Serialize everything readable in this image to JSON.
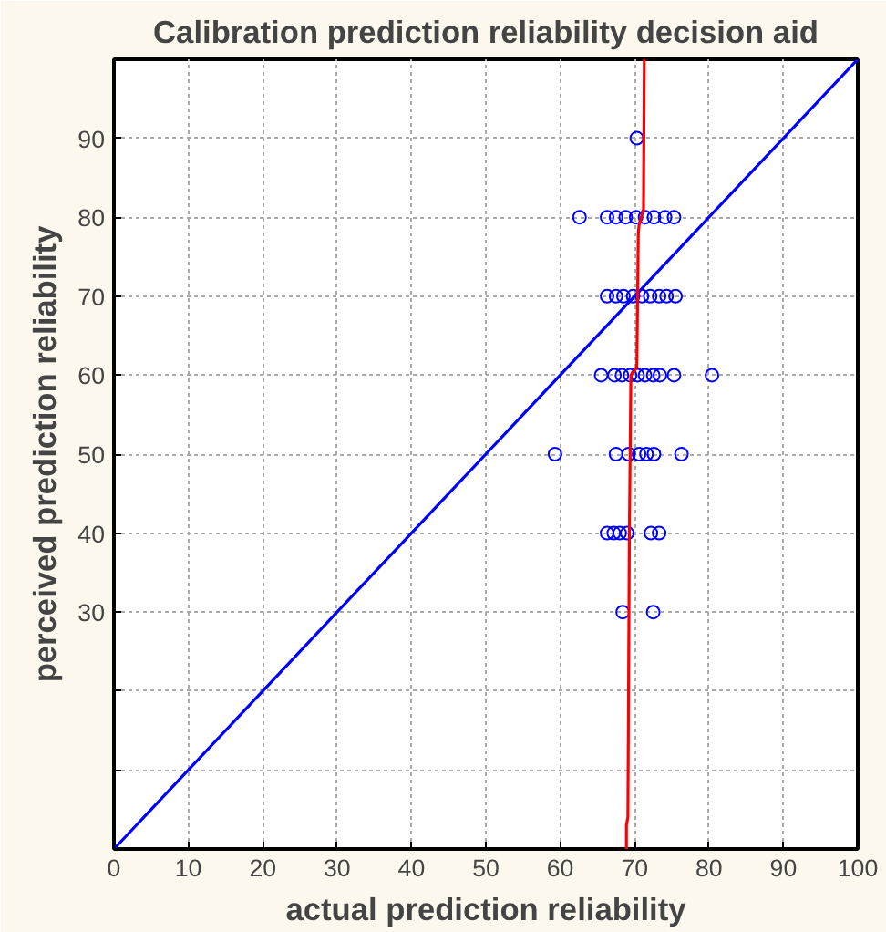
{
  "chart_data": {
    "type": "scatter",
    "title": "Calibration prediction reliability decision aid",
    "xlabel": "actual prediction reliability",
    "ylabel": "perceived prediction reliability",
    "xlim": [
      0,
      100
    ],
    "ylim": [
      0,
      100
    ],
    "xticks": [
      0,
      10,
      20,
      30,
      40,
      50,
      60,
      70,
      80,
      90,
      100
    ],
    "yticks": [
      {
        "value": 0,
        "label": null
      },
      {
        "value": 10,
        "label": null
      },
      {
        "value": 20,
        "label": null
      },
      30,
      40,
      50,
      60,
      70,
      80,
      90,
      {
        "value": 100,
        "label": null
      }
    ],
    "grid": true,
    "series": [
      {
        "color": "#0000ff",
        "marker": "circle",
        "x": [
          70.3,
          62.6,
          66.3,
          67.5,
          68.8,
          70.2,
          71.4,
          72.6,
          74.1,
          75.3,
          66.3,
          67.5,
          68.5,
          69.8,
          71.0,
          72.1,
          73.3,
          74.3,
          75.5,
          65.5,
          67.3,
          68.3,
          69.4,
          70.4,
          71.4,
          72.5,
          73.4,
          75.3,
          80.4,
          59.3,
          67.5,
          69.2,
          70.6,
          71.6,
          72.6,
          76.3,
          66.3,
          67.2,
          68.0,
          69.0,
          72.2,
          73.3,
          68.4,
          72.5
        ],
        "values": [
          90,
          80,
          80,
          80,
          80,
          80,
          80,
          80,
          80,
          80,
          70,
          70,
          70,
          70,
          70,
          70,
          70,
          70,
          70,
          60,
          60,
          60,
          60,
          60,
          60,
          60,
          60,
          60,
          60,
          50,
          50,
          50,
          50,
          50,
          50,
          50,
          40,
          40,
          40,
          40,
          40,
          40,
          30,
          30
        ]
      },
      {
        "type": "line",
        "color": "#0000ff",
        "marker": "none",
        "x": [
          0,
          3,
          4,
          10,
          20,
          30,
          40,
          50,
          55,
          60,
          70,
          80,
          85,
          90,
          100
        ],
        "values": [
          0,
          3,
          4,
          10,
          20,
          30,
          40,
          50,
          55,
          60,
          70,
          80,
          85,
          90,
          100
        ]
      },
      {
        "type": "line",
        "color": "#ff0000",
        "marker": "none",
        "x": [
          68.9,
          68.9,
          69.1,
          69.3,
          69.5,
          70.3,
          70.5,
          70.6,
          71.2,
          71.3
        ],
        "values": [
          0,
          3,
          4,
          40,
          60,
          61,
          78,
          79,
          81,
          100
        ]
      }
    ]
  }
}
